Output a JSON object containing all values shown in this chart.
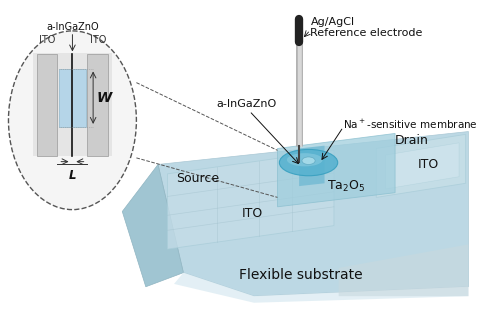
{
  "bg_color": "#ffffff",
  "fig_width": 5.0,
  "fig_height": 3.12,
  "dpi": 100,
  "substrate_color_top": "#c5dde6",
  "substrate_color_mid": "#aecdd8",
  "substrate_color_side": "#8ab5c5",
  "substrate_color_grey": "#d0d8dc",
  "ito_color": "#c0dde8",
  "ta2o5_color": "#a8d2e2",
  "igzo_color": "#70b8d0",
  "membrane_color": "#5ab5d5",
  "membrane_highlight": "#88ccdf",
  "electrode_color": "#888888",
  "electrode_dark": "#333333",
  "inset_bg": "#e8e8e8",
  "inset_ito_color": "#c8c8c8",
  "inset_channel_color": "#b8d5e5",
  "labels": {
    "flexible_substrate": "Flexible substrate",
    "ta2o5": "Ta$_2$O$_5$",
    "ito_source": "ITO",
    "ito_drain": "ITO",
    "source": "Source",
    "drain": "Drain",
    "agagcl_1": "Ag/AgCl",
    "agagcl_2": "Reference electrode",
    "na_membrane": "Na$^+$-sensitive membrane",
    "a_ingazno_main": "a-InGaZnO",
    "inset_ingazno": "a-InGaZnO",
    "inset_ito_left": "ITO",
    "inset_ito_right": "ITO",
    "inset_W": "W",
    "inset_L": "L"
  }
}
